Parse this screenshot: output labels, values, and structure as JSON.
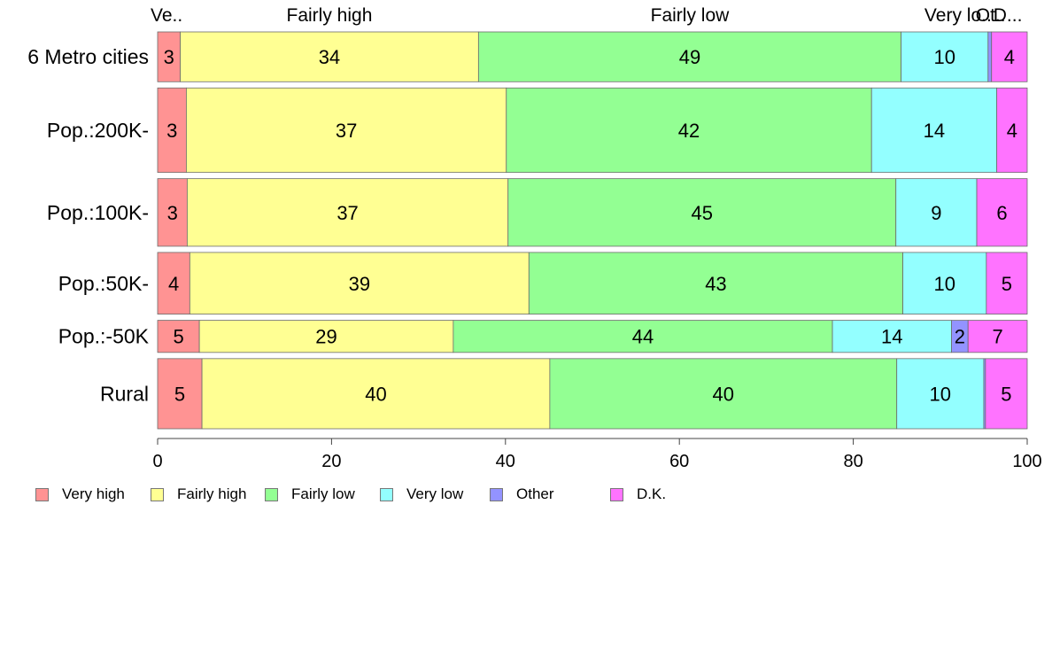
{
  "chart_data": {
    "type": "bar",
    "orientation": "horizontal",
    "stacked": true,
    "categories": [
      "6 Metro cities",
      "Pop.:200K-",
      "Pop.:100K-",
      "Pop.:50K-",
      "Pop.:-50K",
      "Rural"
    ],
    "series": [
      {
        "name": "Very high",
        "color": "#FF9393",
        "values": [
          2.6,
          3.3,
          3.4,
          3.7,
          4.8,
          5.1
        ]
      },
      {
        "name": "Fairly high",
        "color": "#FFFF93",
        "values": [
          34.3,
          36.8,
          36.9,
          39.0,
          29.2,
          40.0
        ]
      },
      {
        "name": "Fairly low",
        "color": "#93FF93",
        "values": [
          48.6,
          42.0,
          44.6,
          43.0,
          43.6,
          39.9
        ]
      },
      {
        "name": "Very low",
        "color": "#93FFFF",
        "values": [
          10.0,
          14.4,
          9.3,
          9.6,
          13.7,
          10.0
        ]
      },
      {
        "name": "Other",
        "color": "#9393FF",
        "values": [
          0.4,
          0.0,
          0.0,
          0.0,
          1.9,
          0.2
        ]
      },
      {
        "name": "D.K.",
        "color": "#FF73FF",
        "values": [
          4.1,
          3.5,
          5.8,
          4.7,
          6.8,
          4.8
        ]
      }
    ],
    "data_labels": [
      [
        "3",
        "34",
        "49",
        "10",
        "",
        "4"
      ],
      [
        "3",
        "37",
        "42",
        "14",
        "",
        "4"
      ],
      [
        "3",
        "37",
        "45",
        "9",
        "",
        "6"
      ],
      [
        "4",
        "39",
        "43",
        "10",
        "",
        "5"
      ],
      [
        "5",
        "29",
        "44",
        "14",
        "2",
        "7"
      ],
      [
        "5",
        "40",
        "40",
        "10",
        "",
        "5"
      ]
    ],
    "bar_weights": [
      5.9,
      10.0,
      8.0,
      7.3,
      3.8,
      8.3
    ],
    "top_labels": [
      "Ve..",
      "Fairly high",
      "Fairly low",
      "Very lo..",
      "Ot..",
      "D..."
    ],
    "xlim": [
      0,
      100
    ],
    "xticks": [
      "0",
      "20",
      "40",
      "60",
      "80",
      "100"
    ],
    "grid": false,
    "legend_position": "bottom-left",
    "title": "",
    "xlabel": "",
    "ylabel": ""
  }
}
